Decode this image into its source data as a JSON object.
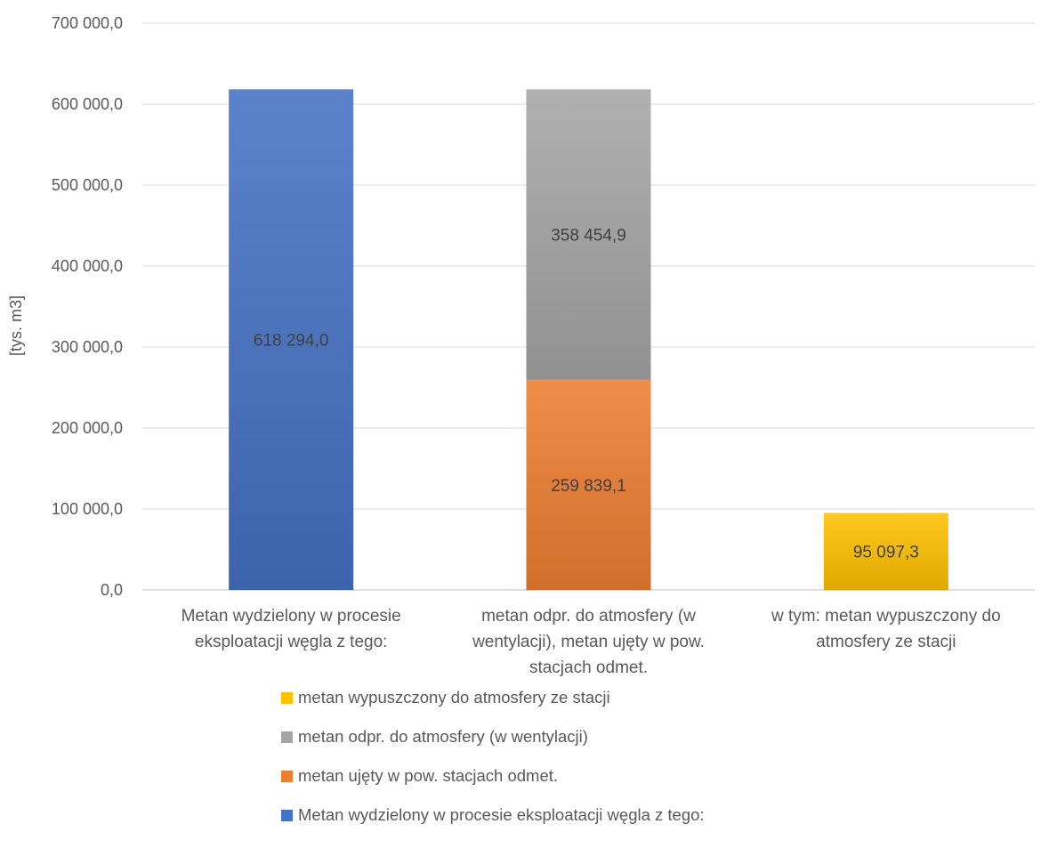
{
  "chart_data": {
    "type": "bar",
    "stacked": true,
    "ylabel": "[tys. m3]",
    "ylim": [
      0,
      700000
    ],
    "yticks": [
      0,
      100000,
      200000,
      300000,
      400000,
      500000,
      600000,
      700000
    ],
    "ytick_labels": [
      "0,0",
      "100 000,0",
      "200 000,0",
      "300 000,0",
      "400 000,0",
      "500 000,0",
      "600 000,0",
      "700 000,0"
    ],
    "grid": true,
    "legend_position": "bottom",
    "categories": [
      [
        "Metan wydzielony w procesie",
        "eksploatacji węgla z tego:"
      ],
      [
        "metan odpr. do atmosfery (w",
        "wentylacji), metan ujęty w pow.",
        "stacjach odmet."
      ],
      [
        "w tym: metan wypuszczony do",
        "atmosfery ze stacji"
      ]
    ],
    "series": [
      {
        "name": "Metan wydzielony w procesie eksploatacji węgla z tego:",
        "color": "#4472C4",
        "values": [
          618294.0,
          null,
          null
        ],
        "labels": [
          "618 294,0",
          "",
          ""
        ]
      },
      {
        "name": "metan ujęty w pow. stacjach odmet.",
        "color": "#ED7D31",
        "values": [
          null,
          259839.1,
          null
        ],
        "labels": [
          "",
          "259 839,1",
          ""
        ]
      },
      {
        "name": "metan odpr. do atmosfery (w wentylacji)",
        "color": "#A5A5A5",
        "values": [
          null,
          358454.9,
          null
        ],
        "labels": [
          "",
          "358 454,9",
          ""
        ]
      },
      {
        "name": "metan wypuszczony do atmosfery ze stacji",
        "color": "#FFC000",
        "values": [
          null,
          null,
          95097.3
        ],
        "labels": [
          "",
          "",
          "95 097,3"
        ]
      }
    ],
    "legend_order": [
      3,
      2,
      1,
      0
    ]
  }
}
